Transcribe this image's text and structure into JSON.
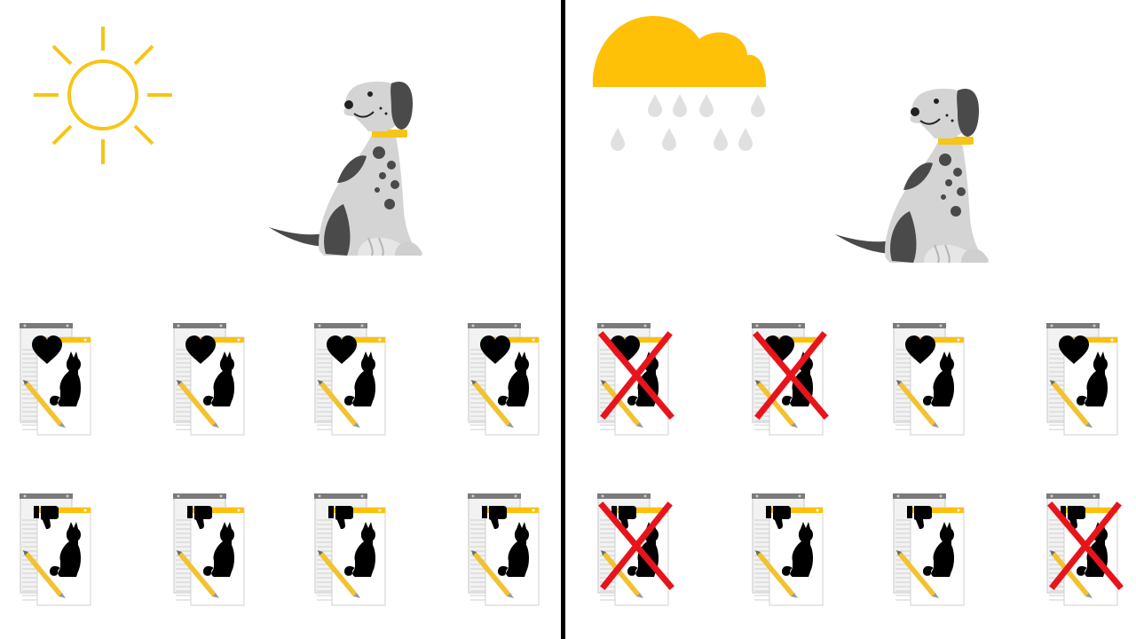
{
  "colors": {
    "sun": "#F7C515",
    "cloud": "#FFC107",
    "rain": "#E0E0E0",
    "dog_light": "#D4D4D4",
    "dog_dark": "#4A4A4A",
    "collar": "#F5C518",
    "card_header": "#FFC107",
    "pencil": "#F2C230",
    "cross": "#E8141C",
    "divider": "#000000"
  },
  "panels": [
    {
      "id": "sunny",
      "weather_icon": "sun-icon",
      "rows": [
        {
          "reaction_icon": "heart-icon",
          "cards": [
            {
              "crossed": false
            },
            {
              "crossed": false
            },
            {
              "crossed": false
            },
            {
              "crossed": false
            }
          ]
        },
        {
          "reaction_icon": "thumbs-down-icon",
          "cards": [
            {
              "crossed": false
            },
            {
              "crossed": false
            },
            {
              "crossed": false
            },
            {
              "crossed": false
            }
          ]
        }
      ]
    },
    {
      "id": "rainy",
      "weather_icon": "rain-cloud-icon",
      "rows": [
        {
          "reaction_icon": "heart-icon",
          "cards": [
            {
              "crossed": true
            },
            {
              "crossed": true
            },
            {
              "crossed": false
            },
            {
              "crossed": false
            }
          ]
        },
        {
          "reaction_icon": "thumbs-down-icon",
          "cards": [
            {
              "crossed": true
            },
            {
              "crossed": false
            },
            {
              "crossed": false
            },
            {
              "crossed": true
            }
          ]
        }
      ]
    }
  ]
}
